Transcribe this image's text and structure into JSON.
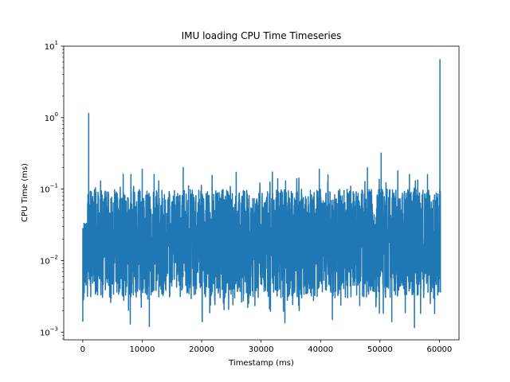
{
  "chart_data": {
    "type": "line",
    "title": "IMU loading CPU Time Timeseries",
    "xlabel": "Timestamp (ms)",
    "ylabel": "CPU Time (ms)",
    "xlim": [
      -3200,
      63300
    ],
    "ylim": [
      0.00078,
      10
    ],
    "y_scale": "log",
    "grid": false,
    "x_ticks": [
      0,
      10000,
      20000,
      30000,
      40000,
      50000,
      60000
    ],
    "x_tick_labels": [
      "0",
      "10000",
      "20000",
      "30000",
      "40000",
      "50000",
      "60000"
    ],
    "y_ticks": [
      0.001,
      0.01,
      0.1,
      1,
      10
    ],
    "y_tick_labels": [
      {
        "base": "10",
        "exp": "−3"
      },
      {
        "base": "10",
        "exp": "−2"
      },
      {
        "base": "10",
        "exp": "−1"
      },
      {
        "base": "10",
        "exp": "0"
      },
      {
        "base": "10",
        "exp": "1"
      }
    ],
    "series": [
      {
        "color": "#1f77b4",
        "x_range": [
          0,
          60200
        ],
        "typical_min": 0.003,
        "typical_max": 0.1,
        "spikes": [
          {
            "x": 1000,
            "y": 1.15
          },
          {
            "x": 60100,
            "y": 6.5
          },
          {
            "x": 10000,
            "y": 0.19
          },
          {
            "x": 16900,
            "y": 0.2
          },
          {
            "x": 50200,
            "y": 0.32
          },
          {
            "x": 47900,
            "y": 0.2
          },
          {
            "x": 53000,
            "y": 0.18
          },
          {
            "x": 39800,
            "y": 0.19
          },
          {
            "x": 8100,
            "y": 0.16
          },
          {
            "x": 12000,
            "y": 0.16
          },
          {
            "x": 58000,
            "y": 0.16
          },
          {
            "x": 32800,
            "y": 0.14
          },
          {
            "x": 3000,
            "y": 0.13
          },
          {
            "x": 36000,
            "y": 0.14
          },
          {
            "x": 0,
            "y": 0.0014
          },
          {
            "x": 11200,
            "y": 0.0012
          },
          {
            "x": 55800,
            "y": 0.00115
          },
          {
            "x": 8000,
            "y": 0.0013
          },
          {
            "x": 34000,
            "y": 0.00135
          },
          {
            "x": 20100,
            "y": 0.0014
          },
          {
            "x": 42000,
            "y": 0.0015
          },
          {
            "x": 52000,
            "y": 0.0014
          }
        ]
      }
    ]
  }
}
